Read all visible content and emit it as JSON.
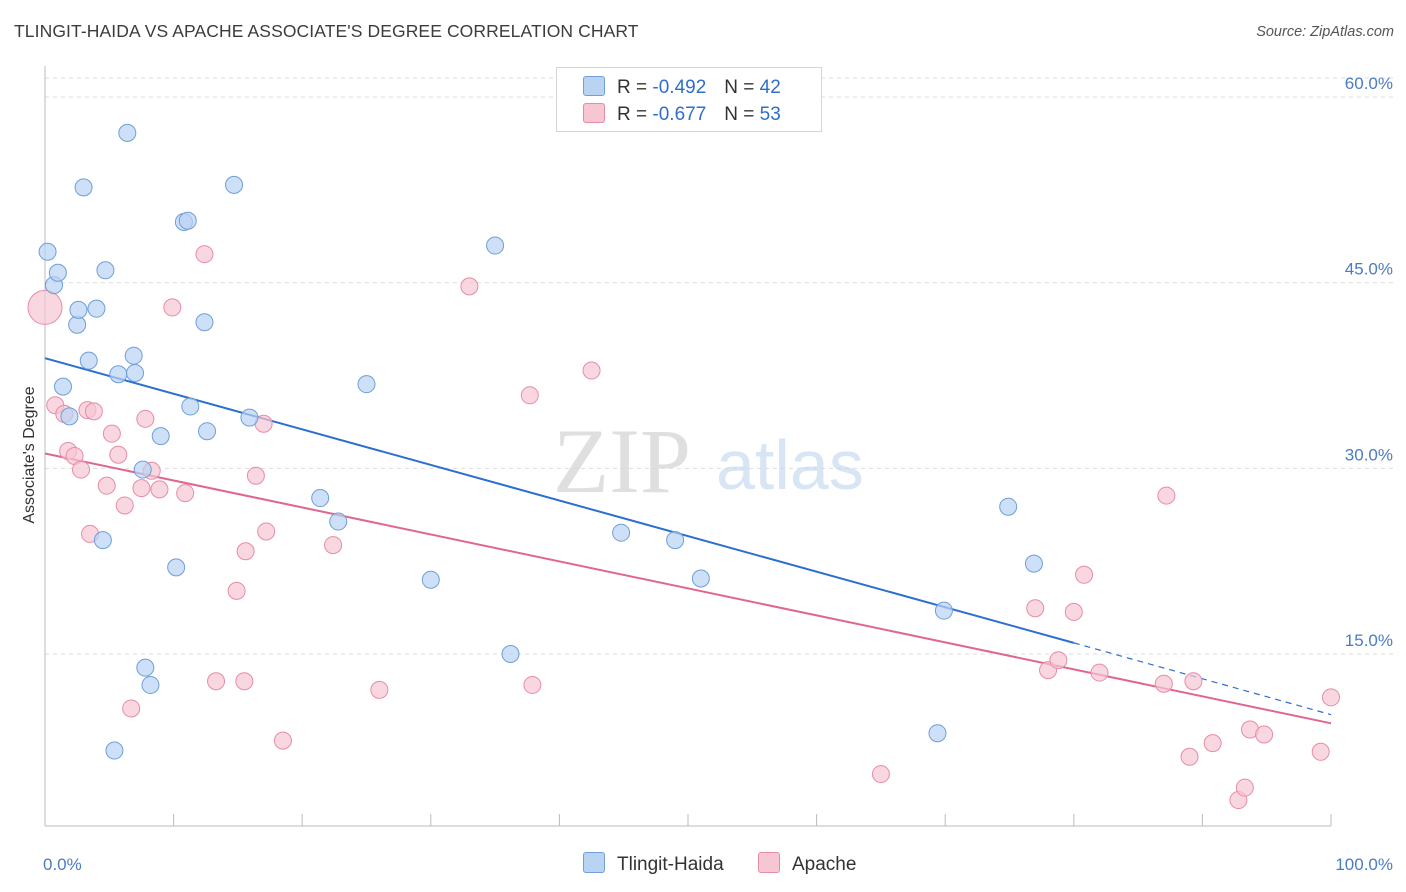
{
  "title": "TLINGIT-HAIDA VS APACHE ASSOCIATE'S DEGREE CORRELATION CHART",
  "source": "Source: ZipAtlas.com",
  "watermark": {
    "zip": "ZIP",
    "atlas": "atlas"
  },
  "legend": {
    "rows": [
      {
        "r_label": "R =",
        "r_value": "-0.492",
        "n_label": "N =",
        "n_value": "42"
      },
      {
        "r_label": "R =",
        "r_value": "-0.677",
        "n_label": "N =",
        "n_value": "53"
      }
    ]
  },
  "bottom_legend": {
    "series1": "Tlingit-Haida",
    "series2": "Apache"
  },
  "colors": {
    "series1_fill": "#b9d3f3",
    "series1_stroke": "#6f9ed9",
    "series1_line": "#2b6fd1",
    "series2_fill": "#f7c6d3",
    "series2_stroke": "#e88ba6",
    "series2_line": "#e0668f",
    "tick_text": "#4a7cc4",
    "grid": "#dddddd"
  },
  "chart_data": {
    "type": "scatter",
    "title": "TLINGIT-HAIDA VS APACHE ASSOCIATE'S DEGREE CORRELATION CHART",
    "xlabel": "",
    "ylabel": "Associate's Degree",
    "xlim": [
      0,
      100
    ],
    "ylim": [
      0,
      64
    ],
    "x_tick_labels": [
      "0.0%",
      "100.0%"
    ],
    "y_ticks": [
      15,
      30,
      45,
      60
    ],
    "y_tick_labels": [
      "15.0%",
      "30.0%",
      "45.0%",
      "60.0%"
    ],
    "grid": true,
    "legend_position": "top-center",
    "series": [
      {
        "name": "Tlingit-Haida",
        "points": [
          [
            0.2,
            47.5
          ],
          [
            0.7,
            44.8
          ],
          [
            1.0,
            45.8
          ],
          [
            1.4,
            36.6
          ],
          [
            1.9,
            34.2
          ],
          [
            2.5,
            41.6
          ],
          [
            2.6,
            42.8
          ],
          [
            3.0,
            52.7
          ],
          [
            3.4,
            38.7
          ],
          [
            4.0,
            42.9
          ],
          [
            4.5,
            24.2
          ],
          [
            4.7,
            46.0
          ],
          [
            5.7,
            37.6
          ],
          [
            6.4,
            57.1
          ],
          [
            6.9,
            39.1
          ],
          [
            7.0,
            37.7
          ],
          [
            7.6,
            29.9
          ],
          [
            7.8,
            13.9
          ],
          [
            8.2,
            12.5
          ],
          [
            9.0,
            32.6
          ],
          [
            10.2,
            22.0
          ],
          [
            10.8,
            49.9
          ],
          [
            11.1,
            50.0
          ],
          [
            11.3,
            35.0
          ],
          [
            12.4,
            41.8
          ],
          [
            12.6,
            33.0
          ],
          [
            5.4,
            7.2
          ],
          [
            15.9,
            34.1
          ],
          [
            14.7,
            52.9
          ],
          [
            21.4,
            27.6
          ],
          [
            22.8,
            25.7
          ],
          [
            25.0,
            36.8
          ],
          [
            30.0,
            21.0
          ],
          [
            35.0,
            48.0
          ],
          [
            36.2,
            15.0
          ],
          [
            44.8,
            24.8
          ],
          [
            49.0,
            24.2
          ],
          [
            51.0,
            21.1
          ],
          [
            69.4,
            8.6
          ],
          [
            69.9,
            18.5
          ],
          [
            74.9,
            26.9
          ],
          [
            76.9,
            22.3
          ]
        ],
        "trend": {
          "x_start": 0,
          "y_start": 38.9,
          "x_solid_end": 80,
          "y_solid_end": 15.9,
          "x_end": 100,
          "y_end": 10.1
        }
      },
      {
        "name": "Apache",
        "points": [
          [
            0.0,
            43.0
          ],
          [
            0.8,
            35.1
          ],
          [
            1.5,
            34.4
          ],
          [
            1.8,
            31.4
          ],
          [
            2.3,
            31.0
          ],
          [
            2.8,
            29.9
          ],
          [
            3.3,
            34.7
          ],
          [
            3.5,
            24.7
          ],
          [
            3.8,
            34.6
          ],
          [
            4.8,
            28.6
          ],
          [
            5.2,
            32.8
          ],
          [
            5.7,
            31.1
          ],
          [
            6.2,
            27.0
          ],
          [
            6.7,
            10.6
          ],
          [
            7.5,
            28.4
          ],
          [
            7.8,
            34.0
          ],
          [
            8.3,
            29.8
          ],
          [
            8.9,
            28.3
          ],
          [
            9.9,
            43.0
          ],
          [
            10.9,
            28.0
          ],
          [
            12.4,
            47.3
          ],
          [
            13.3,
            12.8
          ],
          [
            14.9,
            20.1
          ],
          [
            15.6,
            23.3
          ],
          [
            15.5,
            12.8
          ],
          [
            16.4,
            29.4
          ],
          [
            17.0,
            33.6
          ],
          [
            17.2,
            24.9
          ],
          [
            18.5,
            8.0
          ],
          [
            22.4,
            23.8
          ],
          [
            26.0,
            12.1
          ],
          [
            33.0,
            44.7
          ],
          [
            37.7,
            35.9
          ],
          [
            37.9,
            12.5
          ],
          [
            42.5,
            37.9
          ],
          [
            65.0,
            5.3
          ],
          [
            77.0,
            18.7
          ],
          [
            78.0,
            13.7
          ],
          [
            78.8,
            14.5
          ],
          [
            80.0,
            18.4
          ],
          [
            80.8,
            21.4
          ],
          [
            82.0,
            13.5
          ],
          [
            87.0,
            12.6
          ],
          [
            87.2,
            27.8
          ],
          [
            89.0,
            6.7
          ],
          [
            89.3,
            12.8
          ],
          [
            90.8,
            7.8
          ],
          [
            92.8,
            3.2
          ],
          [
            93.3,
            4.2
          ],
          [
            93.7,
            8.9
          ],
          [
            94.8,
            8.5
          ],
          [
            99.2,
            7.1
          ],
          [
            100.0,
            11.5
          ]
        ],
        "trend": {
          "x_start": 0,
          "y_start": 31.2,
          "x_end": 100,
          "y_end": 9.4
        }
      }
    ]
  }
}
